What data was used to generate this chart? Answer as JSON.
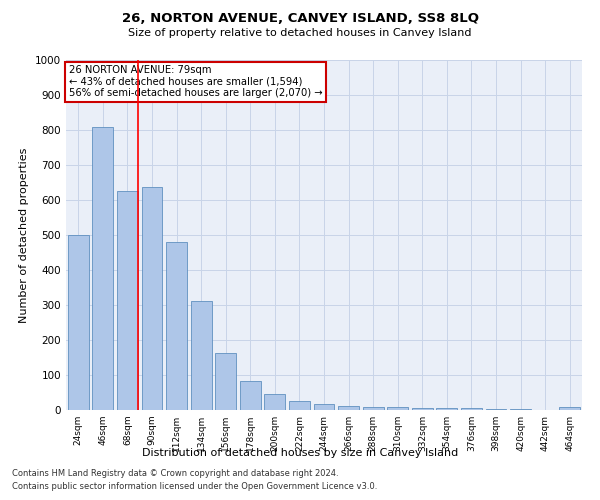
{
  "title": "26, NORTON AVENUE, CANVEY ISLAND, SS8 8LQ",
  "subtitle": "Size of property relative to detached houses in Canvey Island",
  "xlabel": "Distribution of detached houses by size in Canvey Island",
  "ylabel": "Number of detached properties",
  "categories": [
    "24sqm",
    "46sqm",
    "68sqm",
    "90sqm",
    "112sqm",
    "134sqm",
    "156sqm",
    "178sqm",
    "200sqm",
    "222sqm",
    "244sqm",
    "266sqm",
    "288sqm",
    "310sqm",
    "332sqm",
    "354sqm",
    "376sqm",
    "398sqm",
    "420sqm",
    "442sqm",
    "464sqm"
  ],
  "values": [
    500,
    810,
    625,
    638,
    480,
    312,
    162,
    82,
    45,
    25,
    18,
    12,
    10,
    8,
    6,
    5,
    5,
    3,
    2,
    1,
    8
  ],
  "bar_color": "#aec6e8",
  "bar_edge_color": "#6090c0",
  "annotation_line1": "26 NORTON AVENUE: 79sqm",
  "annotation_line2": "← 43% of detached houses are smaller (1,594)",
  "annotation_line3": "56% of semi-detached houses are larger (2,070) →",
  "annotation_box_color": "#cc0000",
  "red_line_x": 2.45,
  "ylim": [
    0,
    1000
  ],
  "yticks": [
    0,
    100,
    200,
    300,
    400,
    500,
    600,
    700,
    800,
    900,
    1000
  ],
  "grid_color": "#c8d4e8",
  "bg_color": "#eaeff8",
  "footer_line1": "Contains HM Land Registry data © Crown copyright and database right 2024.",
  "footer_line2": "Contains public sector information licensed under the Open Government Licence v3.0."
}
